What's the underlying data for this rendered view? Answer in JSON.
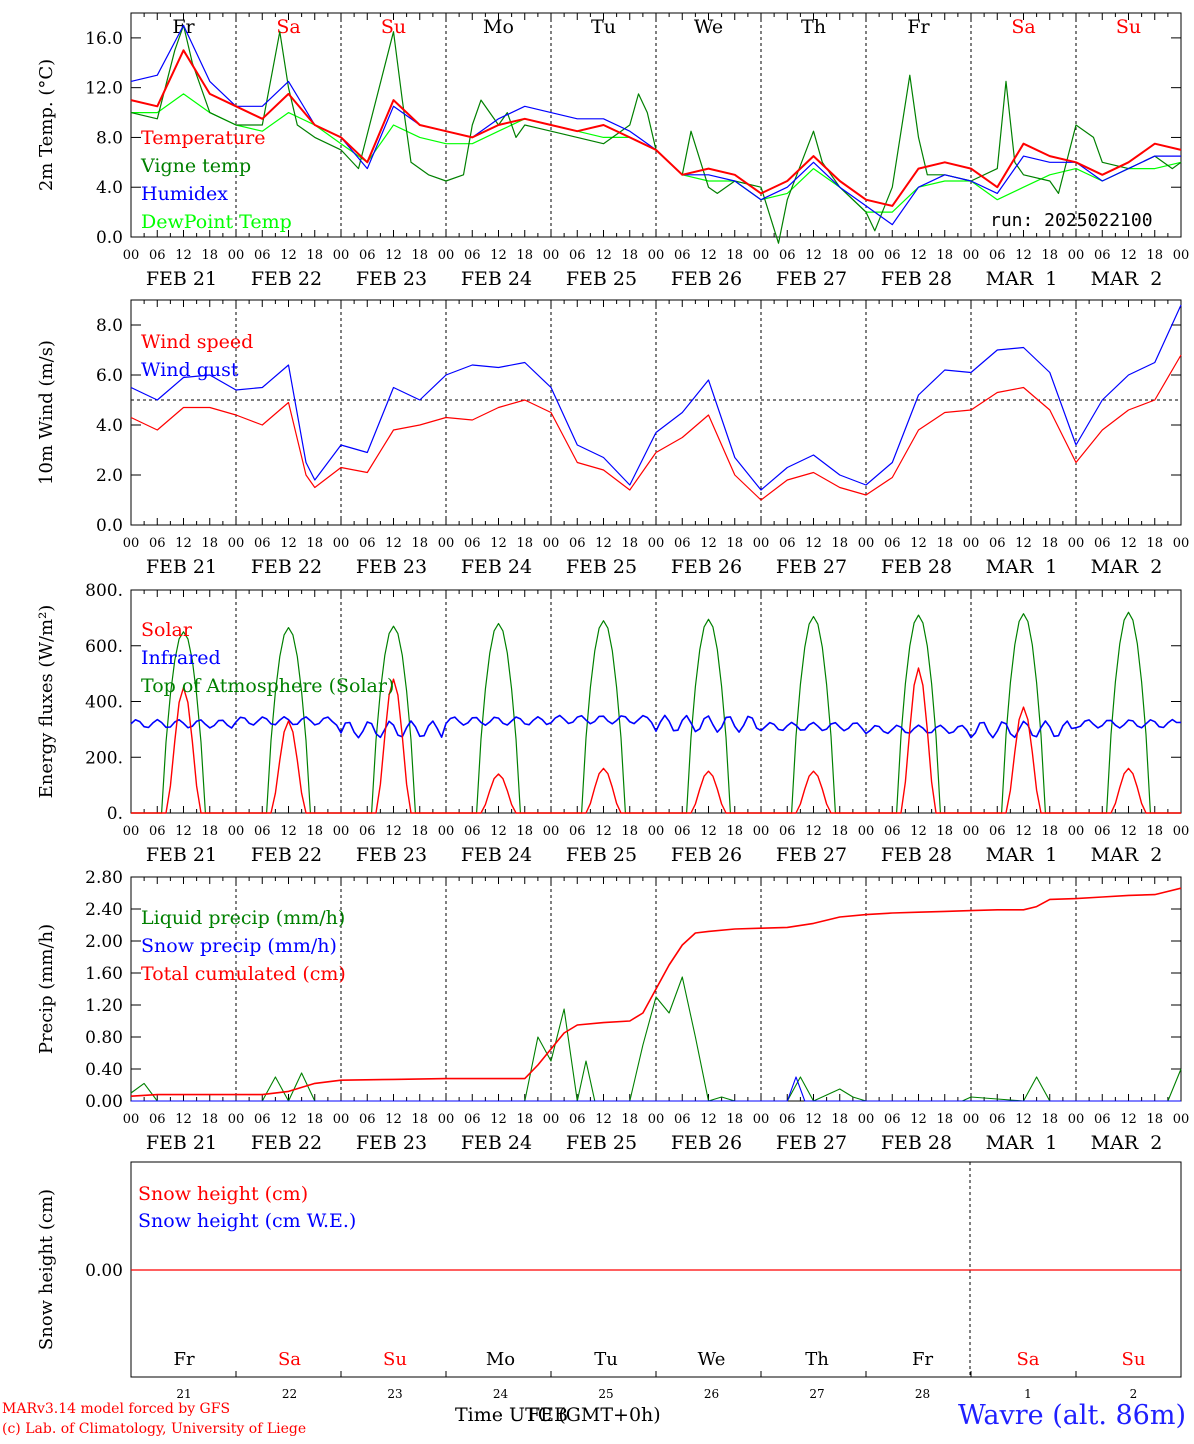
{
  "run_label": "run: 2025022100",
  "day_names": [
    "Fr",
    "Sa",
    "Su",
    "Mo",
    "Tu",
    "We",
    "Th",
    "Fr",
    "Sa",
    "Su"
  ],
  "day_colors": [
    "#000000",
    "#ff0000",
    "#ff0000",
    "#000000",
    "#000000",
    "#000000",
    "#000000",
    "#000000",
    "#ff0000",
    "#ff0000"
  ],
  "date_labels": [
    "FEB 21",
    "FEB 22",
    "FEB 23",
    "FEB 24",
    "FEB 25",
    "FEB 26",
    "FEB 27",
    "FEB 28",
    "MAR  1",
    "MAR  2"
  ],
  "hour_ticks": [
    "00",
    "06",
    "12",
    "18"
  ],
  "last_hour_tick": "00",
  "snow_day_numbers": [
    "21",
    "22",
    "23",
    "24",
    "25",
    "26",
    "27",
    "28",
    "1",
    "2"
  ],
  "footer": {
    "model": "MARv3.14 model forced by GFS",
    "credit": "(c) Lab. of Climatology, University of Liege",
    "time_axis": "Time UTC (GMT+0h)",
    "time_axis_overlay": "FEB",
    "station": "Wavre (alt. 86m)"
  },
  "chart_data": [
    {
      "type": "line",
      "ylabel": "2m Temp. (°C)",
      "ylim": [
        0,
        18
      ],
      "yticks": [
        "0.0",
        "4.0",
        "8.0",
        "12.0",
        "16.0"
      ],
      "x_unit": "hours since FEB 21 00 UTC",
      "series": [
        {
          "name": "Temperature",
          "color": "#ff0000",
          "x": [
            0,
            6,
            12,
            18,
            24,
            30,
            36,
            42,
            48,
            54,
            60,
            66,
            72,
            78,
            84,
            90,
            96,
            102,
            108,
            114,
            120,
            126,
            132,
            138,
            144,
            150,
            156,
            162,
            168,
            174,
            180,
            186,
            192,
            198,
            204,
            210,
            216,
            222,
            228,
            234,
            240
          ],
          "y": [
            11,
            10.5,
            15,
            11.5,
            10.5,
            9.5,
            11.5,
            9,
            8,
            6,
            11,
            9,
            8.5,
            8,
            9,
            9.5,
            9,
            8.5,
            9,
            8,
            7,
            5,
            5.5,
            5,
            3.5,
            4.5,
            6.5,
            4.5,
            3,
            2.5,
            5.5,
            6,
            5.5,
            4,
            7.5,
            6.5,
            6,
            5,
            6,
            7.5,
            7
          ]
        },
        {
          "name": "Vigne temp",
          "color": "#008000",
          "x": [
            0,
            6,
            10,
            12,
            14,
            18,
            24,
            30,
            34,
            36,
            38,
            42,
            48,
            52,
            60,
            62,
            64,
            68,
            72,
            76,
            78,
            80,
            84,
            86,
            88,
            90,
            96,
            102,
            108,
            114,
            116,
            118,
            120,
            126,
            128,
            132,
            134,
            138,
            144,
            148,
            150,
            156,
            158,
            162,
            168,
            170,
            174,
            178,
            180,
            182,
            186,
            192,
            198,
            200,
            202,
            204,
            210,
            212,
            216,
            220,
            222,
            228,
            234,
            238,
            240
          ],
          "y": [
            10,
            9.5,
            15,
            17,
            14,
            10,
            9,
            9,
            16.5,
            12,
            9,
            8,
            7,
            5.5,
            16.5,
            11,
            6,
            5,
            4.5,
            5,
            9,
            11,
            9,
            10,
            8,
            9,
            8.5,
            8,
            7.5,
            9,
            11.5,
            10,
            7,
            5,
            8.5,
            4,
            3.5,
            4.5,
            4,
            -1,
            3,
            8.5,
            6,
            4,
            2,
            0.5,
            4,
            13,
            8,
            5,
            5,
            4.5,
            5.5,
            12.5,
            6,
            5,
            4.5,
            3.5,
            9,
            8,
            6,
            5.5,
            6.5,
            5.5,
            6
          ]
        },
        {
          "name": "Humidex",
          "color": "#0000ff",
          "x": [
            0,
            6,
            12,
            18,
            24,
            30,
            36,
            42,
            48,
            54,
            60,
            66,
            72,
            78,
            84,
            90,
            96,
            102,
            108,
            114,
            120,
            126,
            132,
            138,
            144,
            150,
            156,
            162,
            168,
            174,
            180,
            186,
            192,
            198,
            204,
            210,
            216,
            222,
            228,
            234,
            240
          ],
          "y": [
            12.5,
            13,
            17,
            12.5,
            10.5,
            10.5,
            12.5,
            9,
            8,
            5.5,
            10.5,
            9,
            8.5,
            8,
            9.5,
            10.5,
            10,
            9.5,
            9.5,
            8.5,
            7,
            5,
            5,
            4.5,
            3,
            4,
            6,
            4,
            2.5,
            1,
            4,
            5,
            4.5,
            3.5,
            6.5,
            6,
            6,
            4.5,
            5.5,
            6.5,
            6.5
          ]
        },
        {
          "name": "DewPoint Temp",
          "color": "#00ff00",
          "x": [
            0,
            6,
            12,
            18,
            24,
            30,
            36,
            42,
            48,
            54,
            60,
            66,
            72,
            78,
            84,
            90,
            96,
            102,
            108,
            114,
            120,
            126,
            132,
            138,
            144,
            150,
            156,
            162,
            168,
            174,
            180,
            186,
            192,
            198,
            204,
            210,
            216,
            222,
            228,
            234,
            240
          ],
          "y": [
            10,
            10,
            11.5,
            10,
            9,
            8.5,
            10,
            9,
            7.5,
            6,
            9,
            8,
            7.5,
            7.5,
            8.5,
            9.5,
            9,
            8.5,
            8,
            8,
            7,
            5,
            4.5,
            4.5,
            3,
            3.5,
            5.5,
            4,
            2,
            2,
            4,
            4.5,
            4.5,
            3,
            4,
            5,
            5.5,
            4.5,
            5.5,
            5.5,
            6
          ]
        }
      ]
    },
    {
      "type": "line",
      "ylabel": "10m Wind (m/s)",
      "ylim": [
        0,
        9
      ],
      "yticks": [
        "0.0",
        "2.0",
        "4.0",
        "6.0",
        "8.0"
      ],
      "reference_line": 5,
      "series": [
        {
          "name": "Wind speed",
          "color": "#ff0000",
          "x": [
            0,
            6,
            12,
            18,
            24,
            30,
            36,
            40,
            42,
            48,
            54,
            60,
            66,
            72,
            78,
            84,
            90,
            96,
            102,
            108,
            114,
            120,
            126,
            132,
            138,
            144,
            150,
            156,
            162,
            168,
            174,
            180,
            186,
            192,
            198,
            204,
            210,
            216,
            222,
            228,
            234,
            240
          ],
          "y": [
            4.3,
            3.8,
            4.7,
            4.7,
            4.4,
            4.0,
            4.9,
            2.0,
            1.5,
            2.3,
            2.1,
            3.8,
            4.0,
            4.3,
            4.2,
            4.7,
            5.0,
            4.5,
            2.5,
            2.2,
            1.4,
            2.9,
            3.5,
            4.4,
            2.0,
            1.0,
            1.8,
            2.1,
            1.5,
            1.2,
            1.9,
            3.8,
            4.5,
            4.6,
            5.3,
            5.5,
            4.6,
            2.5,
            3.8,
            4.6,
            5.0,
            6.8
          ]
        },
        {
          "name": "Wind gust",
          "color": "#0000ff",
          "x": [
            0,
            6,
            12,
            18,
            24,
            30,
            36,
            40,
            42,
            48,
            54,
            60,
            66,
            72,
            78,
            84,
            90,
            96,
            102,
            108,
            114,
            120,
            126,
            132,
            138,
            144,
            150,
            156,
            162,
            168,
            174,
            180,
            186,
            192,
            198,
            204,
            210,
            216,
            222,
            228,
            234,
            240
          ],
          "y": [
            5.5,
            5.0,
            5.9,
            6.0,
            5.4,
            5.5,
            6.4,
            2.5,
            1.8,
            3.2,
            2.9,
            5.5,
            5.0,
            6.0,
            6.4,
            6.3,
            6.5,
            5.5,
            3.2,
            2.7,
            1.6,
            3.7,
            4.5,
            5.8,
            2.7,
            1.4,
            2.3,
            2.8,
            2.0,
            1.6,
            2.5,
            5.2,
            6.2,
            6.1,
            7.0,
            7.1,
            6.1,
            3.2,
            5.0,
            6.0,
            6.5,
            8.8
          ]
        }
      ]
    },
    {
      "type": "line",
      "ylabel": "Energy fluxes (W/m²)",
      "ylim": [
        0,
        800
      ],
      "yticks": [
        "0.",
        "200.",
        "400.",
        "600.",
        "800."
      ],
      "series": [
        {
          "name": "Solar",
          "color": "#ff0000",
          "daily_peaks": [
            450,
            330,
            480,
            140,
            160,
            150,
            150,
            520,
            380,
            160
          ]
        },
        {
          "name": "Infrared",
          "color": "#0000ff",
          "daily_mean": [
            320,
            330,
            300,
            330,
            335,
            320,
            310,
            300,
            300,
            320
          ]
        },
        {
          "name": "Top of Atmosphere (Solar)",
          "color": "#008000",
          "daily_peaks": [
            650,
            665,
            670,
            680,
            690,
            695,
            705,
            710,
            715,
            720
          ]
        }
      ]
    },
    {
      "type": "line",
      "ylabel": "Precip (mm/h)",
      "ylim": [
        0,
        2.8
      ],
      "yticks": [
        "0.00",
        "0.40",
        "0.80",
        "1.20",
        "1.60",
        "2.00",
        "2.40",
        "2.80"
      ],
      "series": [
        {
          "name": "Liquid precip (mm/h)",
          "color": "#008000",
          "x": [
            0,
            3,
            6,
            30,
            33,
            36,
            39,
            42,
            48,
            90,
            93,
            96,
            99,
            102,
            104,
            106,
            108,
            114,
            117,
            120,
            123,
            126,
            129,
            132,
            135,
            138,
            150,
            153,
            156,
            162,
            165,
            168,
            174,
            190,
            192,
            204,
            207,
            210,
            237,
            240
          ],
          "y": [
            0.1,
            0.22,
            0,
            0,
            0.3,
            0,
            0.35,
            0,
            0,
            0,
            0.8,
            0.5,
            1.15,
            0,
            0.5,
            0,
            0,
            0,
            0.7,
            1.3,
            1.1,
            1.55,
            0.8,
            0,
            0.05,
            0,
            0,
            0.3,
            0,
            0.15,
            0.05,
            0,
            0,
            0,
            0.05,
            0,
            0.3,
            0,
            0,
            0.4
          ]
        },
        {
          "name": "Snow precip (mm/h)",
          "color": "#0000ff",
          "x": [
            0,
            150,
            152,
            154,
            240
          ],
          "y": [
            0,
            0,
            0.3,
            0,
            0
          ]
        },
        {
          "name": "Total cumulated (cm)",
          "color": "#ff0000",
          "x": [
            0,
            6,
            30,
            36,
            42,
            48,
            60,
            72,
            84,
            90,
            93,
            96,
            99,
            102,
            108,
            114,
            117,
            120,
            123,
            126,
            129,
            132,
            138,
            144,
            150,
            156,
            162,
            168,
            174,
            180,
            186,
            192,
            198,
            204,
            207,
            210,
            216,
            222,
            228,
            234,
            240
          ],
          "y": [
            0.06,
            0.08,
            0.08,
            0.12,
            0.22,
            0.26,
            0.27,
            0.28,
            0.28,
            0.28,
            0.45,
            0.65,
            0.85,
            0.95,
            0.98,
            1.0,
            1.1,
            1.4,
            1.7,
            1.95,
            2.1,
            2.12,
            2.15,
            2.16,
            2.17,
            2.22,
            2.3,
            2.33,
            2.35,
            2.36,
            2.37,
            2.38,
            2.39,
            2.39,
            2.43,
            2.52,
            2.53,
            2.55,
            2.57,
            2.58,
            2.66
          ]
        }
      ]
    },
    {
      "type": "line",
      "ylabel": "Snow height (cm)",
      "ytick": "0.00",
      "series": [
        {
          "name": "Snow height (cm)",
          "color": "#ff0000",
          "x": [
            0,
            240
          ],
          "y": [
            0,
            0
          ]
        },
        {
          "name": "Snow height (cm W.E.)",
          "color": "#0000ff",
          "x": [
            0,
            240
          ],
          "y": [
            0,
            0
          ]
        }
      ]
    }
  ]
}
